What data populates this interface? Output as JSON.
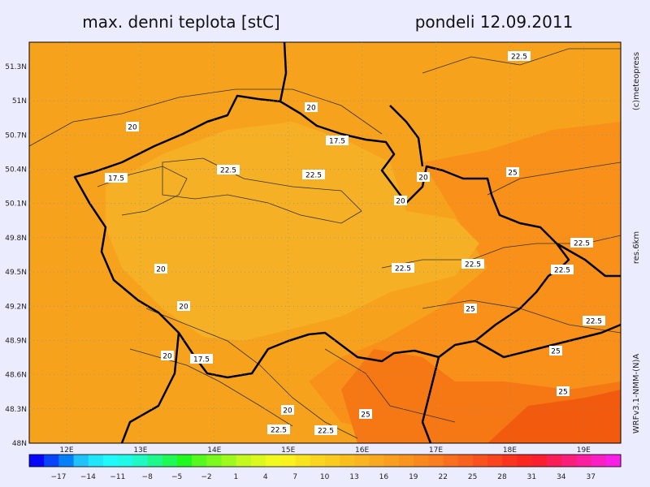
{
  "map": {
    "title": "max. denni teplota [stC]",
    "date": "pondeli 12.09.2011",
    "credit": "(c)meteopress",
    "resolution": "res.6km",
    "model": "WRFv3.1-NMM-(N)A",
    "lat_labels": [
      "51.3N",
      "51N",
      "50.7N",
      "50.4N",
      "50.1N",
      "49.8N",
      "49.5N",
      "49.2N",
      "48.9N",
      "48.6N",
      "48.3N",
      "48N"
    ],
    "lon_labels": [
      "12E",
      "13E",
      "14E",
      "15E",
      "16E",
      "17E",
      "18E",
      "19E"
    ],
    "colorbar_labels": [
      "−17",
      "−14",
      "−11",
      "−8",
      "−5",
      "−2",
      "1",
      "4",
      "7",
      "10",
      "13",
      "16",
      "19",
      "22",
      "25",
      "28",
      "31",
      "34",
      "37"
    ],
    "contour_labels": [
      "22.5",
      "20",
      "20",
      "17.5",
      "17.5",
      "22.5",
      "22.5",
      "20",
      "25",
      "20",
      "22.5",
      "20",
      "22.5",
      "22.5",
      "22.5",
      "20",
      "25",
      "22.5",
      "20",
      "17.5",
      "25",
      "25",
      "20",
      "25",
      "22.5",
      "22.5"
    ]
  }
}
